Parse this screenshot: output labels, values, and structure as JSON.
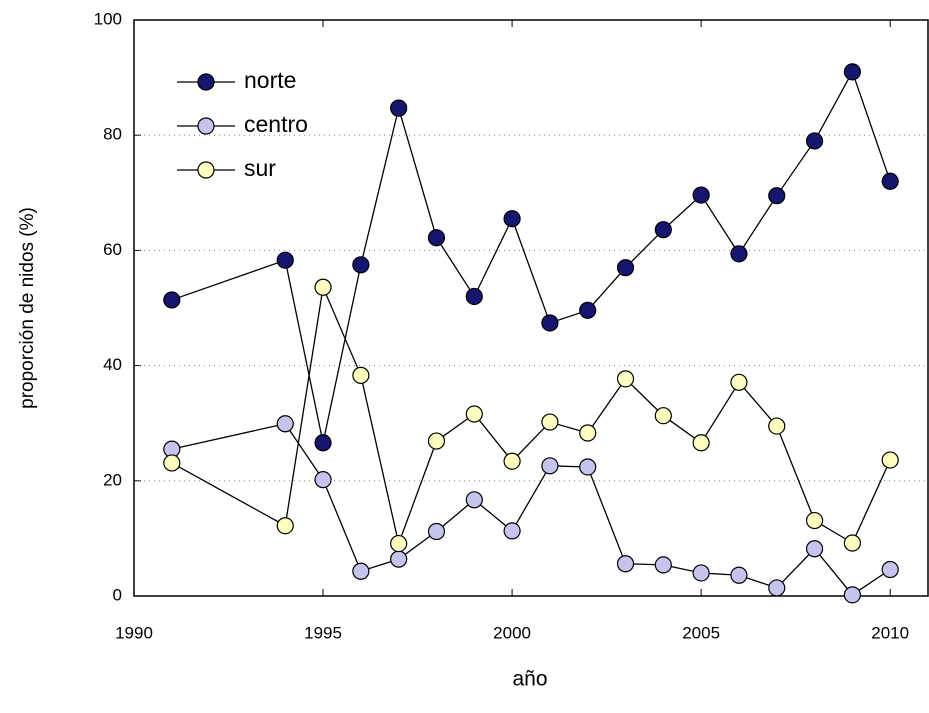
{
  "chart_data": {
    "type": "line",
    "x_label": "año",
    "y_label": "proporción de nidos (%)",
    "x": [
      1991,
      1994,
      1995,
      1996,
      1997,
      1998,
      1999,
      2000,
      2001,
      2002,
      2003,
      2004,
      2005,
      2006,
      2007,
      2008,
      2009,
      2010
    ],
    "series": [
      {
        "name": "norte",
        "color": "#16166e",
        "values": [
          51.4,
          58.3,
          26.6,
          57.5,
          84.7,
          62.2,
          52,
          65.5,
          47.4,
          49.6,
          57,
          63.6,
          69.6,
          59.4,
          69.5,
          79,
          91,
          72
        ]
      },
      {
        "name": "centro",
        "color": "#c4c4ee",
        "values": [
          25.5,
          29.9,
          20.2,
          4.3,
          6.4,
          11.2,
          16.7,
          11.3,
          22.6,
          22.4,
          5.6,
          5.4,
          4.0,
          3.6,
          1.4,
          8.2,
          0.2,
          4.6
        ]
      },
      {
        "name": "sur",
        "color": "#ffffc2",
        "values": [
          23.1,
          12.2,
          53.6,
          38.3,
          9.1,
          26.9,
          31.6,
          23.4,
          30.2,
          28.3,
          37.7,
          31.3,
          26.6,
          37.1,
          29.5,
          13.1,
          9.2,
          23.6
        ]
      }
    ],
    "xlim": [
      1990,
      2011
    ],
    "xticks": [
      1990,
      1995,
      2000,
      2005,
      2010
    ],
    "ylim": [
      0,
      100
    ],
    "yticks": [
      0,
      20,
      40,
      60,
      80,
      100
    ],
    "grid": true,
    "legend": "upper-left"
  }
}
